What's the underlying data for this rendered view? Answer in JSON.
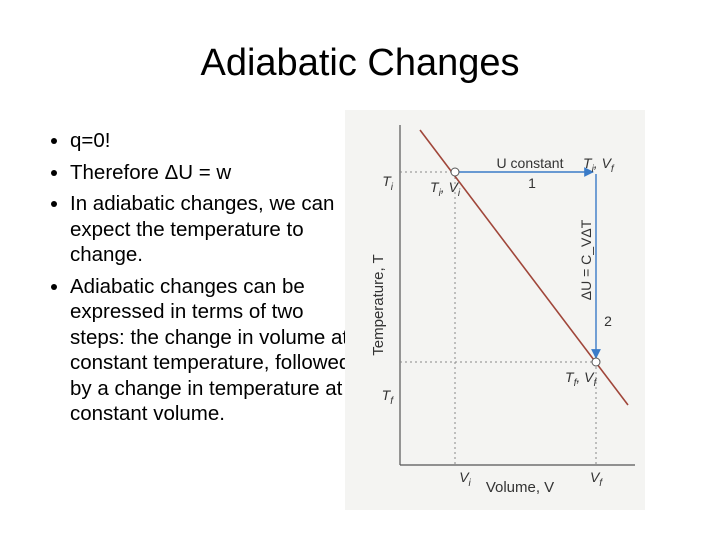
{
  "header": {
    "title": "Adiabatic Changes"
  },
  "bullets": [
    "q=0!",
    "Therefore ΔU = w",
    "In adiabatic changes, we can expect the temperature to change.",
    "Adiabatic changes can be expressed in terms of two steps:  the change in volume at constant temperature, followed by a change in temperature at constant volume."
  ],
  "figure": {
    "y_axis_label": "Temperature, T",
    "x_axis_label": "Volume, V",
    "y_ticks": [
      [
        "T",
        "i"
      ],
      [
        "T",
        "f"
      ]
    ],
    "x_ticks": [
      [
        "V",
        "i"
      ],
      [
        "V",
        "f"
      ]
    ],
    "start_label": [
      "T",
      "i",
      ", V",
      "i"
    ],
    "corner_label": [
      "T",
      "i",
      ", V",
      "f"
    ],
    "end_label": [
      "T",
      "f",
      ", V",
      "f"
    ],
    "step1_label": "U constant",
    "step1_number": "1",
    "step2_label": "ΔU = C_VΔT",
    "step2_number": "2"
  }
}
